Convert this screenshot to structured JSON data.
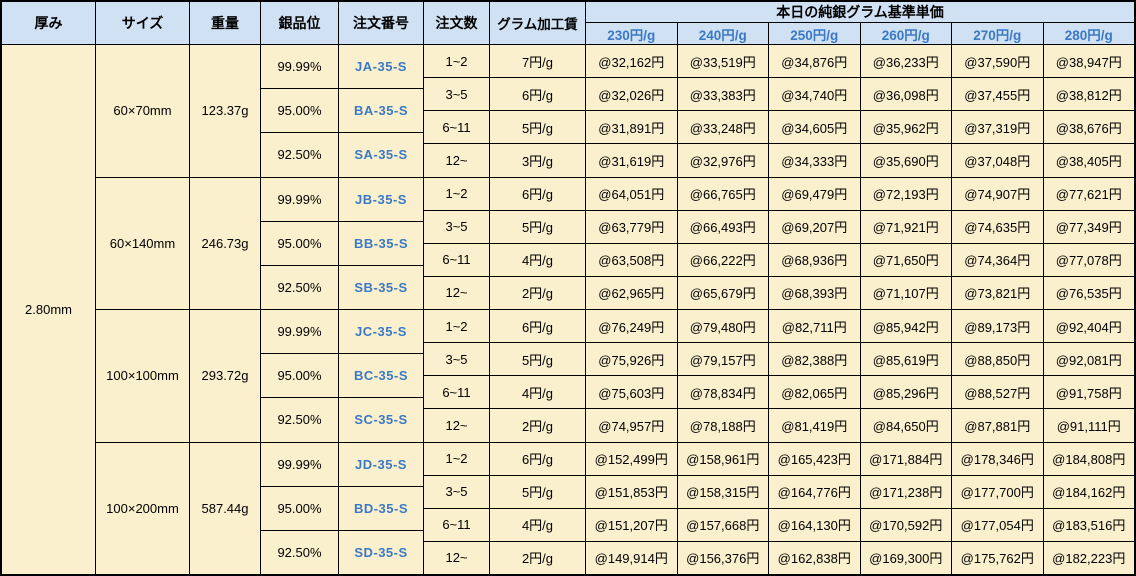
{
  "header": {
    "columns": [
      "厚み",
      "サイズ",
      "重量",
      "銀品位",
      "注文番号",
      "注文数",
      "グラム加工賃"
    ],
    "price_group_title": "本日の純銀グラム基準単価",
    "price_columns": [
      "230円/g",
      "240円/g",
      "250円/g",
      "260円/g",
      "270円/g",
      "280円/g"
    ]
  },
  "thickness": "2.80mm",
  "blocks": [
    {
      "size": "60×70mm",
      "weight": "123.37g",
      "purities": [
        {
          "purity": "99.99%",
          "order_no": "JA-35-S"
        },
        {
          "purity": "95.00%",
          "order_no": "BA-35-S"
        },
        {
          "purity": "92.50%",
          "order_no": "SA-35-S"
        }
      ],
      "rows": [
        {
          "qty": "1~2",
          "fee": "7円/g",
          "prices": [
            "@32,162円",
            "@33,519円",
            "@34,876円",
            "@36,233円",
            "@37,590円",
            "@38,947円"
          ]
        },
        {
          "qty": "3~5",
          "fee": "6円/g",
          "prices": [
            "@32,026円",
            "@33,383円",
            "@34,740円",
            "@36,098円",
            "@37,455円",
            "@38,812円"
          ]
        },
        {
          "qty": "6~11",
          "fee": "5円/g",
          "prices": [
            "@31,891円",
            "@33,248円",
            "@34,605円",
            "@35,962円",
            "@37,319円",
            "@38,676円"
          ]
        },
        {
          "qty": "12~",
          "fee": "3円/g",
          "prices": [
            "@31,619円",
            "@32,976円",
            "@34,333円",
            "@35,690円",
            "@37,048円",
            "@38,405円"
          ]
        }
      ]
    },
    {
      "size": "60×140mm",
      "weight": "246.73g",
      "purities": [
        {
          "purity": "99.99%",
          "order_no": "JB-35-S"
        },
        {
          "purity": "95.00%",
          "order_no": "BB-35-S"
        },
        {
          "purity": "92.50%",
          "order_no": "SB-35-S"
        }
      ],
      "rows": [
        {
          "qty": "1~2",
          "fee": "6円/g",
          "prices": [
            "@64,051円",
            "@66,765円",
            "@69,479円",
            "@72,193円",
            "@74,907円",
            "@77,621円"
          ]
        },
        {
          "qty": "3~5",
          "fee": "5円/g",
          "prices": [
            "@63,779円",
            "@66,493円",
            "@69,207円",
            "@71,921円",
            "@74,635円",
            "@77,349円"
          ]
        },
        {
          "qty": "6~11",
          "fee": "4円/g",
          "prices": [
            "@63,508円",
            "@66,222円",
            "@68,936円",
            "@71,650円",
            "@74,364円",
            "@77,078円"
          ]
        },
        {
          "qty": "12~",
          "fee": "2円/g",
          "prices": [
            "@62,965円",
            "@65,679円",
            "@68,393円",
            "@71,107円",
            "@73,821円",
            "@76,535円"
          ]
        }
      ]
    },
    {
      "size": "100×100mm",
      "weight": "293.72g",
      "purities": [
        {
          "purity": "99.99%",
          "order_no": "JC-35-S"
        },
        {
          "purity": "95.00%",
          "order_no": "BC-35-S"
        },
        {
          "purity": "92.50%",
          "order_no": "SC-35-S"
        }
      ],
      "rows": [
        {
          "qty": "1~2",
          "fee": "6円/g",
          "prices": [
            "@76,249円",
            "@79,480円",
            "@82,711円",
            "@85,942円",
            "@89,173円",
            "@92,404円"
          ]
        },
        {
          "qty": "3~5",
          "fee": "5円/g",
          "prices": [
            "@75,926円",
            "@79,157円",
            "@82,388円",
            "@85,619円",
            "@88,850円",
            "@92,081円"
          ]
        },
        {
          "qty": "6~11",
          "fee": "4円/g",
          "prices": [
            "@75,603円",
            "@78,834円",
            "@82,065円",
            "@85,296円",
            "@88,527円",
            "@91,758円"
          ]
        },
        {
          "qty": "12~",
          "fee": "2円/g",
          "prices": [
            "@74,957円",
            "@78,188円",
            "@81,419円",
            "@84,650円",
            "@87,881円",
            "@91,111円"
          ]
        }
      ]
    },
    {
      "size": "100×200mm",
      "weight": "587.44g",
      "purities": [
        {
          "purity": "99.99%",
          "order_no": "JD-35-S"
        },
        {
          "purity": "95.00%",
          "order_no": "BD-35-S"
        },
        {
          "purity": "92.50%",
          "order_no": "SD-35-S"
        }
      ],
      "rows": [
        {
          "qty": "1~2",
          "fee": "6円/g",
          "prices": [
            "@152,499円",
            "@158,961円",
            "@165,423円",
            "@171,884円",
            "@178,346円",
            "@184,808円"
          ]
        },
        {
          "qty": "3~5",
          "fee": "5円/g",
          "prices": [
            "@151,853円",
            "@158,315円",
            "@164,776円",
            "@171,238円",
            "@177,700円",
            "@184,162円"
          ]
        },
        {
          "qty": "6~11",
          "fee": "4円/g",
          "prices": [
            "@151,207円",
            "@157,668円",
            "@164,130円",
            "@170,592円",
            "@177,054円",
            "@183,516円"
          ]
        },
        {
          "qty": "12~",
          "fee": "2円/g",
          "prices": [
            "@149,914円",
            "@156,376円",
            "@162,838円",
            "@169,300円",
            "@175,762円",
            "@182,223円"
          ]
        }
      ]
    }
  ],
  "colors": {
    "header_bg": "#CFE1F3",
    "cell_bg": "#FBF0CD",
    "blue_text": "#3B79C6",
    "border": "#000000"
  }
}
